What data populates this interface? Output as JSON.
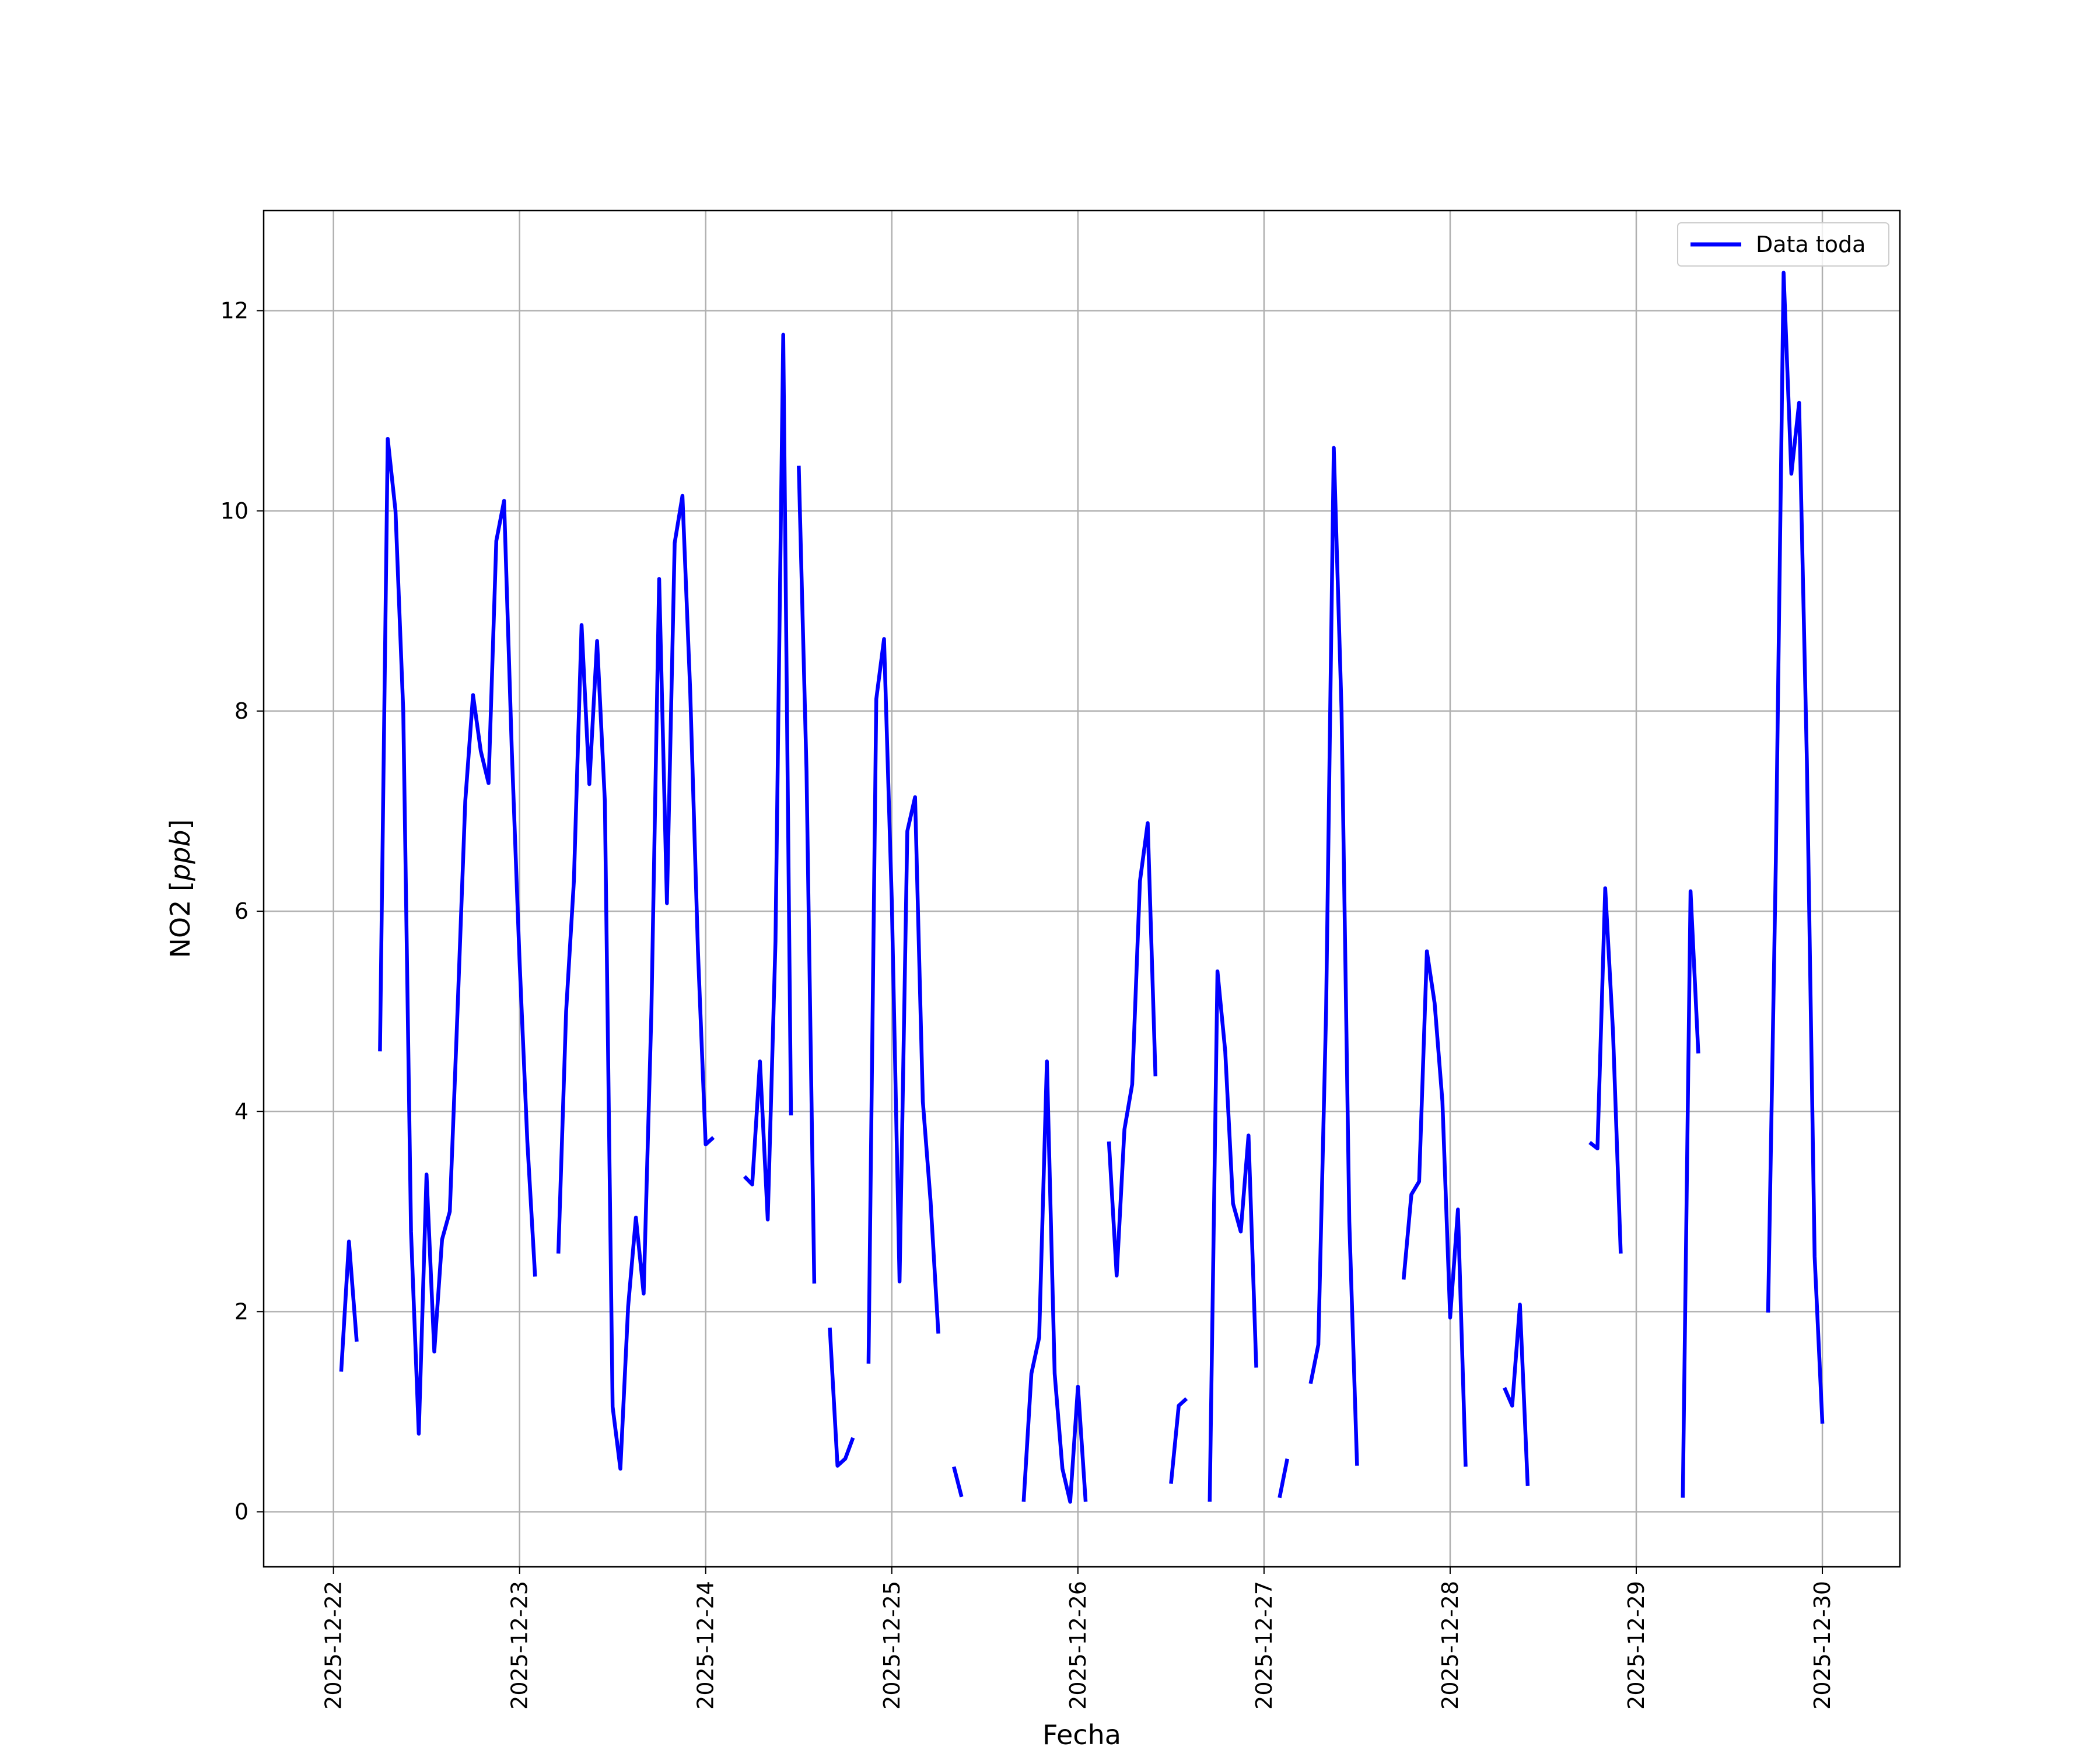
{
  "chart_data": {
    "type": "line",
    "title": "",
    "xlabel": "Fecha",
    "ylabel": "NO2 [ppb]",
    "ylabel_main": "NO2 ",
    "ylabel_unit": "ppb",
    "xlim": [
      "2025-12-21 15:00",
      "2025-12-30 10:00"
    ],
    "ylim": [
      -0.55,
      13.0
    ],
    "x_ticks": [
      "2025-12-22",
      "2025-12-23",
      "2025-12-24",
      "2025-12-25",
      "2025-12-26",
      "2025-12-27",
      "2025-12-28",
      "2025-12-29",
      "2025-12-30"
    ],
    "y_ticks": [
      0,
      2,
      4,
      6,
      8,
      10,
      12
    ],
    "grid": true,
    "legend_position": "top-right",
    "line_color": "#0000ff",
    "series": [
      {
        "name": "Data toda",
        "segments": [
          [
            [
              "2025-12-22 01:00",
              1.4
            ],
            [
              "2025-12-22 02:00",
              2.7
            ],
            [
              "2025-12-22 03:00",
              1.7
            ]
          ],
          [
            [
              "2025-12-22 06:00",
              4.6
            ],
            [
              "2025-12-22 07:00",
              10.72
            ],
            [
              "2025-12-22 08:00",
              10.0
            ],
            [
              "2025-12-22 09:00",
              8.0
            ],
            [
              "2025-12-22 10:00",
              2.8
            ],
            [
              "2025-12-22 11:00",
              0.78
            ],
            [
              "2025-12-22 12:00",
              3.37
            ],
            [
              "2025-12-22 13:00",
              1.6
            ],
            [
              "2025-12-22 14:00",
              2.72
            ],
            [
              "2025-12-22 15:00",
              3.0
            ],
            [
              "2025-12-22 16:00",
              5.0
            ],
            [
              "2025-12-22 17:00",
              7.1
            ],
            [
              "2025-12-22 18:00",
              8.16
            ],
            [
              "2025-12-22 19:00",
              7.6
            ],
            [
              "2025-12-22 20:00",
              7.28
            ],
            [
              "2025-12-22 21:00",
              9.7
            ],
            [
              "2025-12-22 22:00",
              10.1
            ],
            [
              "2025-12-22 23:00",
              7.6
            ],
            [
              "2025-12-23 00:00",
              5.5
            ],
            [
              "2025-12-23 01:00",
              3.7
            ],
            [
              "2025-12-23 02:00",
              2.35
            ]
          ],
          [
            [
              "2025-12-23 05:00",
              2.58
            ],
            [
              "2025-12-23 06:00",
              5.0
            ],
            [
              "2025-12-23 07:00",
              6.3
            ],
            [
              "2025-12-23 08:00",
              8.86
            ],
            [
              "2025-12-23 09:00",
              7.27
            ],
            [
              "2025-12-23 10:00",
              8.7
            ],
            [
              "2025-12-23 11:00",
              7.1
            ],
            [
              "2025-12-23 12:00",
              1.05
            ],
            [
              "2025-12-23 13:00",
              0.43
            ],
            [
              "2025-12-23 14:00",
              2.05
            ],
            [
              "2025-12-23 15:00",
              2.94
            ],
            [
              "2025-12-23 16:00",
              2.18
            ],
            [
              "2025-12-23 17:00",
              5.0
            ],
            [
              "2025-12-23 18:00",
              9.32
            ],
            [
              "2025-12-23 19:00",
              6.08
            ],
            [
              "2025-12-23 20:00",
              9.68
            ],
            [
              "2025-12-23 21:00",
              10.15
            ],
            [
              "2025-12-23 22:00",
              8.2
            ],
            [
              "2025-12-23 23:00",
              5.6
            ],
            [
              "2025-12-24 00:00",
              3.67
            ],
            [
              "2025-12-24 01:00",
              3.74
            ]
          ],
          [
            [
              "2025-12-24 05:00",
              3.35
            ],
            [
              "2025-12-24 06:00",
              3.27
            ],
            [
              "2025-12-24 07:00",
              4.5
            ],
            [
              "2025-12-24 08:00",
              2.92
            ],
            [
              "2025-12-24 09:00",
              5.7
            ],
            [
              "2025-12-24 10:00",
              11.76
            ],
            [
              "2025-12-24 11:00",
              3.96
            ]
          ],
          [
            [
              "2025-12-24 12:00",
              10.45
            ],
            [
              "2025-12-24 13:00",
              7.4
            ],
            [
              "2025-12-24 14:00",
              2.28
            ]
          ],
          [
            [
              "2025-12-24 16:00",
              1.84
            ],
            [
              "2025-12-24 17:00",
              0.46
            ],
            [
              "2025-12-24 18:00",
              0.53
            ],
            [
              "2025-12-24 19:00",
              0.74
            ]
          ],
          [
            [
              "2025-12-24 21:00",
              1.48
            ],
            [
              "2025-12-24 22:00",
              8.12
            ],
            [
              "2025-12-24 23:00",
              8.72
            ],
            [
              "2025-12-25 00:00",
              6.1
            ],
            [
              "2025-12-25 01:00",
              2.3
            ],
            [
              "2025-12-25 02:00",
              6.8
            ],
            [
              "2025-12-25 03:00",
              7.14
            ],
            [
              "2025-12-25 04:00",
              4.1
            ],
            [
              "2025-12-25 05:00",
              3.1
            ],
            [
              "2025-12-25 06:00",
              1.78
            ]
          ],
          [
            [
              "2025-12-25 08:00",
              0.45
            ],
            [
              "2025-12-25 09:00",
              0.15
            ]
          ],
          [
            [
              "2025-12-25 17:00",
              0.1
            ],
            [
              "2025-12-25 18:00",
              1.38
            ],
            [
              "2025-12-25 19:00",
              1.74
            ],
            [
              "2025-12-25 20:00",
              4.5
            ],
            [
              "2025-12-25 21:00",
              1.38
            ],
            [
              "2025-12-25 22:00",
              0.43
            ],
            [
              "2025-12-25 23:00",
              0.1
            ],
            [
              "2025-12-26 00:00",
              1.25
            ],
            [
              "2025-12-26 01:00",
              0.1
            ]
          ],
          [
            [
              "2025-12-26 04:00",
              3.7
            ],
            [
              "2025-12-26 05:00",
              2.36
            ],
            [
              "2025-12-26 06:00",
              3.82
            ],
            [
              "2025-12-26 07:00",
              4.27
            ],
            [
              "2025-12-26 08:00",
              6.3
            ],
            [
              "2025-12-26 09:00",
              6.88
            ],
            [
              "2025-12-26 10:00",
              4.35
            ]
          ],
          [
            [
              "2025-12-26 12:00",
              0.28
            ],
            [
              "2025-12-26 13:00",
              1.06
            ],
            [
              "2025-12-26 14:00",
              1.13
            ]
          ],
          [
            [
              "2025-12-26 17:00",
              0.1
            ],
            [
              "2025-12-26 18:00",
              5.4
            ],
            [
              "2025-12-26 19:00",
              4.6
            ],
            [
              "2025-12-26 20:00",
              3.08
            ],
            [
              "2025-12-26 21:00",
              2.8
            ],
            [
              "2025-12-26 22:00",
              3.76
            ],
            [
              "2025-12-26 23:00",
              1.44
            ]
          ],
          [
            [
              "2025-12-27 02:00",
              0.14
            ],
            [
              "2025-12-27 03:00",
              0.53
            ]
          ],
          [
            [
              "2025-12-27 06:00",
              1.28
            ],
            [
              "2025-12-27 07:00",
              1.67
            ],
            [
              "2025-12-27 08:00",
              5.0
            ],
            [
              "2025-12-27 09:00",
              10.63
            ],
            [
              "2025-12-27 10:00",
              8.0
            ],
            [
              "2025-12-27 11:00",
              2.9
            ],
            [
              "2025-12-27 12:00",
              0.46
            ]
          ],
          [
            [
              "2025-12-27 18:00",
              2.32
            ],
            [
              "2025-12-27 19:00",
              3.17
            ],
            [
              "2025-12-27 20:00",
              3.3
            ],
            [
              "2025-12-27 21:00",
              5.6
            ],
            [
              "2025-12-27 22:00",
              5.08
            ],
            [
              "2025-12-27 23:00",
              4.1
            ],
            [
              "2025-12-28 00:00",
              1.94
            ],
            [
              "2025-12-28 01:00",
              3.02
            ],
            [
              "2025-12-28 02:00",
              0.45
            ]
          ],
          [
            [
              "2025-12-28 07:00",
              1.24
            ],
            [
              "2025-12-28 08:00",
              1.06
            ],
            [
              "2025-12-28 09:00",
              2.07
            ],
            [
              "2025-12-28 10:00",
              0.26
            ]
          ],
          [
            [
              "2025-12-28 18:00",
              3.69
            ],
            [
              "2025-12-28 19:00",
              3.63
            ],
            [
              "2025-12-28 20:00",
              6.23
            ],
            [
              "2025-12-28 21:00",
              4.8
            ],
            [
              "2025-12-28 22:00",
              2.58
            ]
          ],
          [
            [
              "2025-12-29 06:00",
              0.14
            ],
            [
              "2025-12-29 07:00",
              6.2
            ],
            [
              "2025-12-29 08:00",
              4.58
            ]
          ],
          [
            [
              "2025-12-29 17:00",
              1.99
            ],
            [
              "2025-12-29 18:00",
              6.5
            ],
            [
              "2025-12-29 19:00",
              12.38
            ],
            [
              "2025-12-29 20:00",
              10.37
            ],
            [
              "2025-12-29 21:00",
              11.08
            ],
            [
              "2025-12-29 22:00",
              7.5
            ],
            [
              "2025-12-29 23:00",
              2.55
            ],
            [
              "2025-12-30 00:00",
              0.88
            ]
          ]
        ]
      }
    ]
  }
}
